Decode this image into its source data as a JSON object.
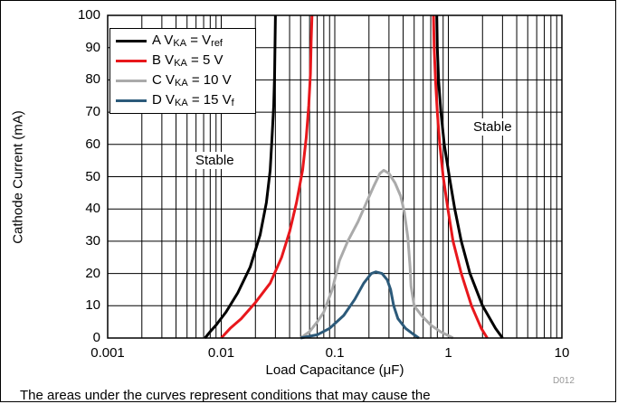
{
  "chart_data": {
    "type": "line",
    "title": "",
    "xlabel": "Load Capacitance (μF)",
    "ylabel": "Cathode Current (mA)",
    "xscale": "log",
    "xlim": [
      0.001,
      10
    ],
    "ylim": [
      0,
      100
    ],
    "x_ticks": [
      "0.001",
      "0.01",
      "0.1",
      "1",
      "10"
    ],
    "y_ticks": [
      "0",
      "10",
      "20",
      "30",
      "40",
      "50",
      "60",
      "70",
      "80",
      "90",
      "100"
    ],
    "grid": true,
    "legend_position": "top-left",
    "region_labels": [
      "Stable",
      "Stable"
    ],
    "series": [
      {
        "name": "A V",
        "sub": "KA",
        "mid": " = V",
        "sub2": "ref",
        "color": "#000000",
        "left": [
          [
            0.0072,
            0
          ],
          [
            0.008,
            2
          ],
          [
            0.009,
            4
          ],
          [
            0.011,
            8
          ],
          [
            0.014,
            14
          ],
          [
            0.018,
            22
          ],
          [
            0.022,
            32
          ],
          [
            0.025,
            42
          ],
          [
            0.027,
            52
          ],
          [
            0.028,
            62
          ],
          [
            0.029,
            72
          ],
          [
            0.0295,
            82
          ],
          [
            0.0298,
            92
          ],
          [
            0.03,
            100
          ]
        ],
        "right": [
          [
            0.79,
            100
          ],
          [
            0.8,
            90
          ],
          [
            0.82,
            80
          ],
          [
            0.86,
            70
          ],
          [
            0.92,
            60
          ],
          [
            1.02,
            50
          ],
          [
            1.14,
            40
          ],
          [
            1.3,
            30
          ],
          [
            1.55,
            20
          ],
          [
            2.0,
            10
          ],
          [
            2.6,
            3
          ],
          [
            3.0,
            0
          ]
        ]
      },
      {
        "name": "B V",
        "sub": "KA",
        "mid": " = 5 V",
        "sub2": "",
        "color": "#e8171c",
        "left": [
          [
            0.01,
            0
          ],
          [
            0.012,
            3
          ],
          [
            0.015,
            6
          ],
          [
            0.02,
            11
          ],
          [
            0.027,
            17
          ],
          [
            0.034,
            25
          ],
          [
            0.04,
            33
          ],
          [
            0.046,
            42
          ],
          [
            0.052,
            52
          ],
          [
            0.056,
            62
          ],
          [
            0.059,
            72
          ],
          [
            0.061,
            82
          ],
          [
            0.062,
            92
          ],
          [
            0.063,
            100
          ]
        ],
        "right": [
          [
            0.74,
            100
          ],
          [
            0.75,
            90
          ],
          [
            0.77,
            80
          ],
          [
            0.8,
            70
          ],
          [
            0.84,
            60
          ],
          [
            0.9,
            50
          ],
          [
            0.99,
            40
          ],
          [
            1.1,
            30
          ],
          [
            1.3,
            20
          ],
          [
            1.6,
            10
          ],
          [
            1.95,
            3
          ],
          [
            2.2,
            0
          ]
        ]
      },
      {
        "name": "C V",
        "sub": "KA",
        "mid": " = 10 V",
        "sub2": "",
        "color": "#aaaaaa",
        "left": [
          [
            0.05,
            0
          ],
          [
            0.06,
            2
          ],
          [
            0.07,
            5
          ],
          [
            0.08,
            8
          ],
          [
            0.095,
            15
          ],
          [
            0.11,
            24
          ],
          [
            0.13,
            30
          ],
          [
            0.16,
            36
          ],
          [
            0.19,
            42
          ],
          [
            0.22,
            47
          ],
          [
            0.25,
            51
          ],
          [
            0.27,
            52
          ],
          [
            0.3,
            51
          ],
          [
            0.34,
            48
          ],
          [
            0.38,
            44
          ],
          [
            0.41,
            39
          ],
          [
            0.44,
            31
          ],
          [
            0.46,
            22
          ],
          [
            0.47,
            16
          ],
          [
            0.5,
            10
          ],
          [
            0.58,
            7
          ],
          [
            0.7,
            4
          ],
          [
            0.85,
            2
          ],
          [
            1.1,
            0
          ]
        ],
        "right": []
      },
      {
        "name": "D V",
        "sub": "KA",
        "mid": " = 15 V",
        "sub2": "f",
        "color": "#2c5a7a",
        "left": [
          [
            0.05,
            0
          ],
          [
            0.07,
            1
          ],
          [
            0.09,
            3
          ],
          [
            0.12,
            7
          ],
          [
            0.15,
            12
          ],
          [
            0.18,
            17
          ],
          [
            0.21,
            20
          ],
          [
            0.23,
            20.5
          ],
          [
            0.26,
            20
          ],
          [
            0.29,
            18
          ],
          [
            0.31,
            15
          ],
          [
            0.33,
            10
          ],
          [
            0.36,
            6
          ],
          [
            0.42,
            3
          ],
          [
            0.5,
            1
          ],
          [
            0.55,
            0
          ]
        ],
        "right": []
      }
    ]
  },
  "caption": "The areas under the curves represent conditions that may cause the",
  "doc_id": "D012"
}
